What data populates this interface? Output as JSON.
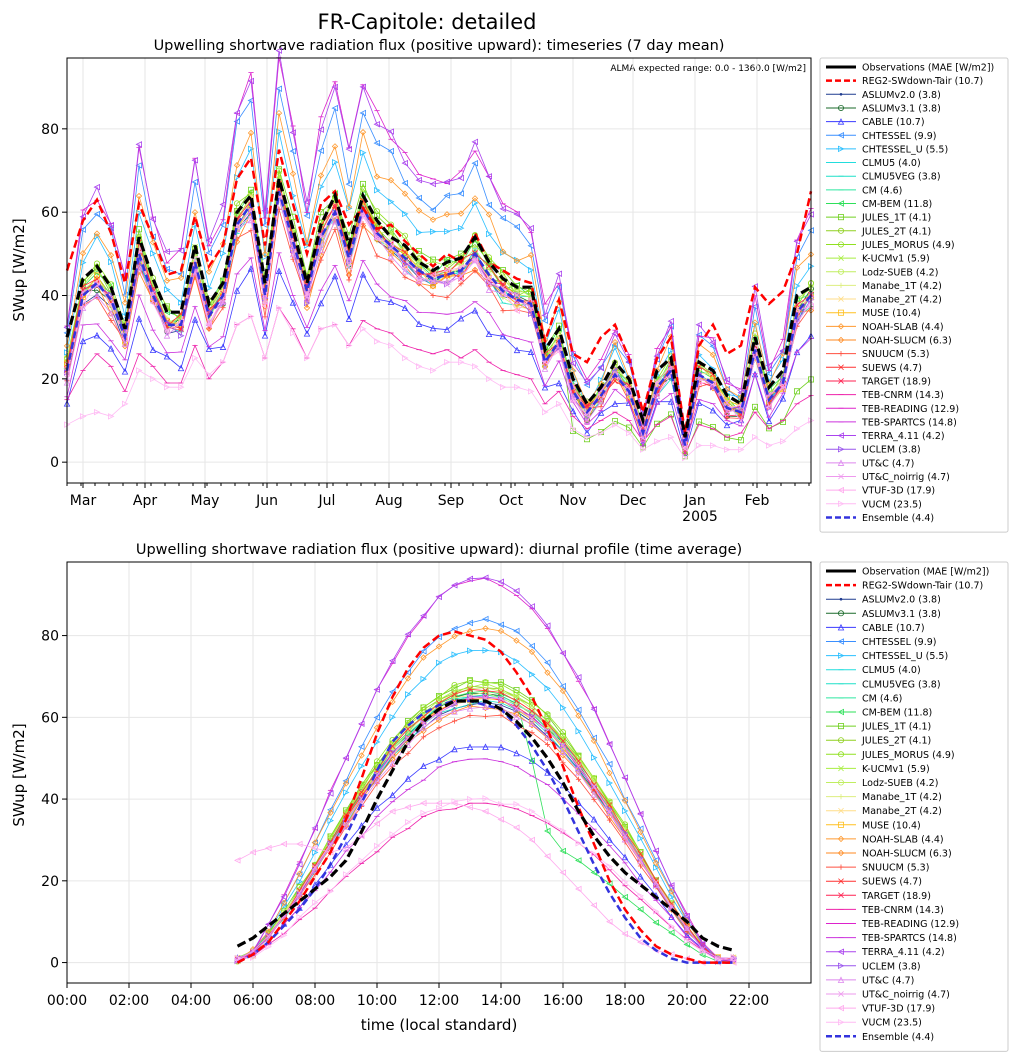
{
  "suptitle": "FR-Capitole: detailed",
  "colors": {
    "obs": "#000000",
    "reg2": "#ff0000",
    "ensemble": "#3333dd",
    "models": [
      "#1f3b8f",
      "#1a6a2a",
      "#3a3aff",
      "#3a8fff",
      "#2abfff",
      "#22dddd",
      "#1fe0c8",
      "#2ee8a0",
      "#2ee05a",
      "#70d020",
      "#90d020",
      "#90e020",
      "#a8ee40",
      "#c0ee60",
      "#ddee80",
      "#ffdd88",
      "#ffc020",
      "#ff9a30",
      "#ff8a20",
      "#ff5040",
      "#ff3030",
      "#ff2050",
      "#ee22aa",
      "#dd22cc",
      "#cc33dd",
      "#aa44ee",
      "#9955ee",
      "#dd88ee",
      "#ee99ee",
      "#ffaaee",
      "#ffbbf4"
    ]
  },
  "chart_data": [
    {
      "type": "line",
      "title": "Upwelling shortwave radiation flux (positive upward): timeseries (7 day mean)",
      "ylabel": "SWup [W/m2]",
      "xlabel": "",
      "annotation": "ALMA expected range: 0.0 - 1360.0 [W/m2]",
      "xlim": [
        "2004-02-22",
        "2005-02-28"
      ],
      "ylim": [
        -5,
        97
      ],
      "yticks": [
        0,
        20,
        40,
        60,
        80
      ],
      "xticks": [
        {
          "date": "2004-03-01",
          "label": "Mar"
        },
        {
          "date": "2004-04-01",
          "label": "Apr"
        },
        {
          "date": "2004-05-01",
          "label": "May"
        },
        {
          "date": "2004-06-01",
          "label": "Jun"
        },
        {
          "date": "2004-07-01",
          "label": "Jul"
        },
        {
          "date": "2004-08-01",
          "label": "Aug"
        },
        {
          "date": "2004-09-01",
          "label": "Sep"
        },
        {
          "date": "2004-10-01",
          "label": "Oct"
        },
        {
          "date": "2004-11-01",
          "label": "Nov"
        },
        {
          "date": "2004-12-01",
          "label": "Dec"
        },
        {
          "date": "2005-01-01",
          "label": "Jan"
        },
        {
          "date": "2005-02-01",
          "label": "Feb"
        }
      ],
      "year_label": "2005",
      "grid": true,
      "legend_position": "outside-right",
      "legend": [
        "Observations (MAE [W/m2])",
        "REG2-SWdown-Tair (10.7)",
        "ASLUMv2.0 (3.8)",
        "ASLUMv3.1 (3.8)",
        "CABLE (10.7)",
        "CHTESSEL (9.9)",
        "CHTESSEL_U (5.5)",
        "CLMU5 (4.0)",
        "CLMU5VEG (3.8)",
        "CM (4.6)",
        "CM-BEM (11.8)",
        "JULES_1T (4.1)",
        "JULES_2T (4.1)",
        "JULES_MORUS (4.9)",
        "K-UCMv1 (5.9)",
        "Lodz-SUEB (4.2)",
        "Manabe_1T (4.2)",
        "Manabe_2T (4.2)",
        "MUSE (10.4)",
        "NOAH-SLAB (4.4)",
        "NOAH-SLUCM (6.3)",
        "SNUUCM (5.3)",
        "SUEWS (4.7)",
        "TARGET (18.9)",
        "TEB-CNRM (14.3)",
        "TEB-READING (12.9)",
        "TEB-SPARTCS (14.8)",
        "TERRA_4.11 (4.2)",
        "UCLEM (3.8)",
        "UT&C (4.7)",
        "UT&C_noirrig (4.7)",
        "VTUF-3D (17.9)",
        "VUCM (23.5)",
        "Ensemble (4.4)"
      ],
      "x": [
        "2004-02-22",
        "2004-03-01",
        "2004-03-08",
        "2004-03-15",
        "2004-03-22",
        "2004-03-29",
        "2004-04-05",
        "2004-04-12",
        "2004-04-19",
        "2004-04-26",
        "2004-05-03",
        "2004-05-10",
        "2004-05-17",
        "2004-05-24",
        "2004-05-31",
        "2004-06-07",
        "2004-06-14",
        "2004-06-21",
        "2004-06-28",
        "2004-07-05",
        "2004-07-12",
        "2004-07-19",
        "2004-07-26",
        "2004-08-02",
        "2004-08-09",
        "2004-08-16",
        "2004-08-23",
        "2004-08-30",
        "2004-09-06",
        "2004-09-13",
        "2004-09-20",
        "2004-09-27",
        "2004-10-04",
        "2004-10-11",
        "2004-10-18",
        "2004-10-25",
        "2004-11-01",
        "2004-11-08",
        "2004-11-15",
        "2004-11-22",
        "2004-11-29",
        "2004-12-06",
        "2004-12-13",
        "2004-12-20",
        "2004-12-27",
        "2005-01-03",
        "2005-01-10",
        "2005-01-17",
        "2005-01-24",
        "2005-01-31",
        "2005-02-07",
        "2005-02-14",
        "2005-02-21",
        "2005-02-28"
      ],
      "series": [
        {
          "name": "Observations (MAE [W/m2])",
          "values": [
            30,
            44,
            47,
            42,
            32,
            54,
            44,
            36,
            36,
            52,
            38,
            43,
            60,
            64,
            43,
            68,
            56,
            43,
            57,
            64,
            52,
            64,
            58,
            54,
            52,
            48,
            46,
            48,
            49,
            54,
            48,
            44,
            42,
            42,
            27,
            32,
            20,
            14,
            18,
            24,
            20,
            10,
            22,
            25,
            6,
            24,
            22,
            16,
            14,
            30,
            18,
            22,
            40,
            42
          ]
        },
        {
          "name": "REG2-SWdown-Tair (10.7)",
          "values": [
            46,
            58,
            63,
            55,
            43,
            62,
            54,
            45,
            46,
            59,
            47,
            52,
            68,
            73,
            52,
            75,
            62,
            50,
            62,
            65,
            57,
            61,
            56,
            57,
            53,
            50,
            47,
            50,
            48,
            55,
            48,
            46,
            44,
            43,
            29,
            39,
            26,
            24,
            30,
            33,
            25,
            12,
            25,
            30,
            7,
            28,
            33,
            26,
            28,
            42,
            38,
            41,
            50,
            65
          ]
        },
        {
          "name": "Ensemble (4.4)",
          "values": [
            22,
            40,
            43,
            39,
            30,
            50,
            40,
            33,
            33,
            48,
            35,
            40,
            57,
            62,
            40,
            65,
            53,
            41,
            54,
            60,
            49,
            61,
            55,
            52,
            49,
            46,
            44,
            45,
            46,
            50,
            45,
            41,
            39,
            38,
            24,
            29,
            17,
            12,
            16,
            21,
            17,
            7,
            18,
            22,
            4,
            21,
            19,
            13,
            12,
            27,
            15,
            19,
            36,
            40
          ]
        },
        {
          "name": "VUCM (23.5)",
          "values": [
            9,
            11,
            12,
            11,
            14,
            22,
            20,
            18,
            18,
            25,
            21,
            24,
            33,
            35,
            25,
            37,
            31,
            25,
            32,
            33,
            28,
            32,
            29,
            28,
            25,
            23,
            22,
            24,
            24,
            23,
            20,
            18,
            18,
            17,
            12,
            14,
            8,
            6,
            7,
            9,
            7,
            3,
            5,
            6,
            1,
            4,
            4,
            3,
            3,
            6,
            4,
            5,
            8,
            10
          ]
        },
        {
          "name": "TARGET (18.9)",
          "values": [
            15,
            22,
            26,
            23,
            17,
            26,
            23,
            19,
            19,
            28,
            20,
            24,
            33,
            35,
            25,
            37,
            32,
            25,
            32,
            33,
            28,
            34,
            32,
            31,
            28,
            27,
            26,
            27,
            25,
            27,
            24,
            22,
            21,
            20,
            14,
            17,
            11,
            8,
            10,
            12,
            10,
            5,
            9,
            11,
            2,
            9,
            8,
            6,
            7,
            12,
            8,
            10,
            14,
            16
          ]
        }
      ]
    },
    {
      "type": "line",
      "title": "Upwelling shortwave radiation flux (positive upward): diurnal profile (time average)",
      "ylabel": "SWup [W/m2]",
      "xlabel": "time (local standard)",
      "xlim": [
        0,
        24
      ],
      "ylim": [
        -5,
        98
      ],
      "yticks": [
        0,
        20,
        40,
        60,
        80
      ],
      "xticks": [
        {
          "value": 0,
          "label": "00:00"
        },
        {
          "value": 2,
          "label": "02:00"
        },
        {
          "value": 4,
          "label": "04:00"
        },
        {
          "value": 6,
          "label": "06:00"
        },
        {
          "value": 8,
          "label": "08:00"
        },
        {
          "value": 10,
          "label": "10:00"
        },
        {
          "value": 12,
          "label": "12:00"
        },
        {
          "value": 14,
          "label": "14:00"
        },
        {
          "value": 16,
          "label": "16:00"
        },
        {
          "value": 18,
          "label": "18:00"
        },
        {
          "value": 20,
          "label": "20:00"
        },
        {
          "value": 22,
          "label": "22:00"
        }
      ],
      "grid": true,
      "legend_position": "outside-right",
      "legend": [
        "Observation (MAE [W/m2])",
        "REG2-SWdown-Tair (10.7)",
        "ASLUMv2.0 (3.8)",
        "ASLUMv3.1 (3.8)",
        "CABLE (10.7)",
        "CHTESSEL (9.9)",
        "CHTESSEL_U (5.5)",
        "CLMU5 (4.0)",
        "CLMU5VEG (3.8)",
        "CM (4.6)",
        "CM-BEM (11.8)",
        "JULES_1T (4.1)",
        "JULES_2T (4.1)",
        "JULES_MORUS (4.9)",
        "K-UCMv1 (5.9)",
        "Lodz-SUEB (4.2)",
        "Manabe_1T (4.2)",
        "Manabe_2T (4.2)",
        "MUSE (10.4)",
        "NOAH-SLAB (4.4)",
        "NOAH-SLUCM (6.3)",
        "SNUUCM (5.3)",
        "SUEWS (4.7)",
        "TARGET (18.9)",
        "TEB-CNRM (14.3)",
        "TEB-READING (12.9)",
        "TEB-SPARTCS (14.8)",
        "TERRA_4.11 (4.2)",
        "UCLEM (3.8)",
        "UT&C (4.7)",
        "UT&C_noirrig (4.7)",
        "VTUF-3D (17.9)",
        "VUCM (23.5)",
        "Ensemble (4.4)"
      ],
      "peaks": [
        63,
        65,
        52,
        83,
        76,
        65,
        63,
        65,
        66,
        68,
        67,
        68,
        67,
        66,
        65,
        64,
        64,
        81,
        62,
        60,
        66,
        64,
        38,
        93,
        49,
        93,
        64,
        62,
        64,
        64,
        39,
        39
      ],
      "series": [
        {
          "name": "Observation (MAE [W/m2])",
          "x": [
            5.5,
            6,
            6.5,
            7,
            7.5,
            8,
            8.5,
            9,
            9.5,
            10,
            10.5,
            11,
            11.5,
            12,
            12.5,
            13,
            13.5,
            14,
            14.5,
            15,
            15.5,
            16,
            16.5,
            17,
            17.5,
            18,
            18.5,
            19,
            19.5,
            20,
            20.5,
            21,
            21.5
          ],
          "values": [
            4,
            6,
            9,
            12,
            15,
            18,
            21,
            25,
            32,
            40,
            47,
            54,
            59,
            62,
            64,
            64,
            64,
            62,
            59,
            55,
            50,
            44,
            37,
            31,
            26,
            22,
            19,
            16,
            13,
            10,
            6,
            4,
            3
          ]
        },
        {
          "name": "REG2-SWdown-Tair (10.7)",
          "x": [
            5.5,
            6,
            6.5,
            7,
            7.5,
            8,
            8.5,
            9,
            9.5,
            10,
            10.5,
            11,
            11.5,
            12,
            12.5,
            13,
            13.5,
            14,
            14.5,
            15,
            15.5,
            16,
            16.5,
            17,
            17.5,
            18,
            18.5,
            19,
            19.5,
            20,
            20.5,
            21,
            21.5
          ],
          "values": [
            0,
            2,
            5,
            10,
            15,
            21,
            27,
            35,
            45,
            56,
            65,
            72,
            77,
            80,
            81,
            80,
            79,
            76,
            71,
            65,
            57,
            48,
            38,
            29,
            20,
            13,
            8,
            4,
            2,
            1,
            0,
            0,
            0
          ]
        },
        {
          "name": "Ensemble (4.4)",
          "x": [
            5.5,
            6,
            6.5,
            7,
            7.5,
            8,
            8.5,
            9,
            9.5,
            10,
            10.5,
            11,
            11.5,
            12,
            12.5,
            13,
            13.5,
            14,
            14.5,
            15,
            15.5,
            16,
            16.5,
            17,
            17.5,
            18,
            18.5,
            19,
            19.5,
            20,
            20.5,
            21,
            21.5
          ],
          "values": [
            0,
            2,
            5,
            9,
            13,
            18,
            24,
            31,
            39,
            47,
            54,
            58,
            61,
            63,
            64,
            64,
            63,
            62,
            58,
            53,
            47,
            40,
            32,
            24,
            17,
            11,
            6,
            3,
            1,
            0,
            0,
            0,
            0
          ]
        },
        {
          "name": "VTUF-3D (17.9)",
          "x": [
            5.5,
            6,
            6.5,
            7,
            7.5,
            8,
            8.5,
            9,
            9.5,
            10,
            10.5,
            11,
            11.5,
            12,
            12.5,
            13,
            13.5,
            14,
            14.5,
            15,
            15.5,
            16,
            16.5,
            17,
            17.5,
            18,
            18.5,
            19,
            19.5,
            20,
            20.5,
            21,
            21.5
          ],
          "values": [
            25,
            27,
            28,
            29,
            29,
            28,
            27,
            28,
            31,
            34,
            37,
            38,
            39,
            39,
            39,
            38,
            37,
            35,
            33,
            30,
            26,
            22,
            18,
            14,
            10,
            7,
            5,
            3,
            2,
            1,
            0,
            0,
            0
          ]
        }
      ]
    }
  ]
}
